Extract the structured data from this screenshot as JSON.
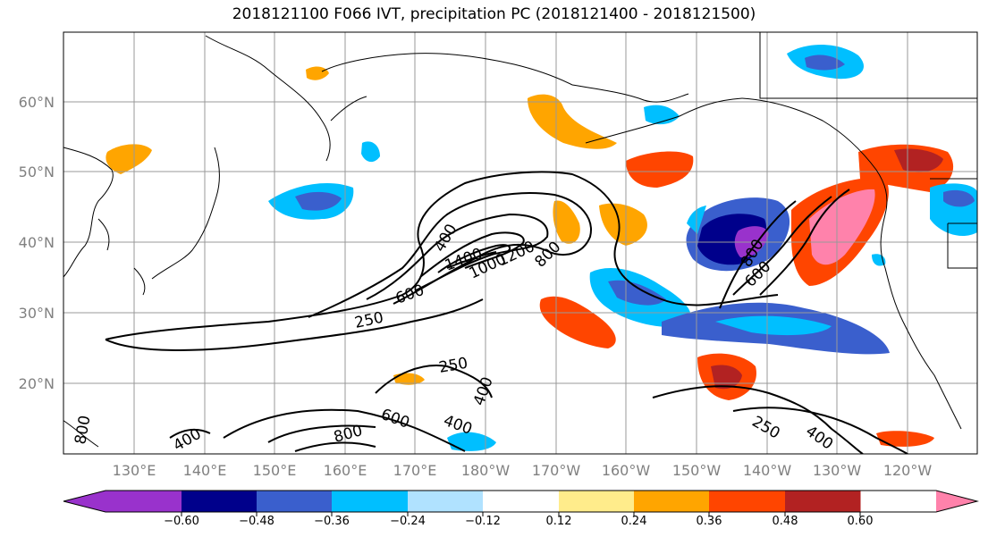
{
  "title": "2018121100 F066 IVT, precipitation PC (2018121400 - 2018121500)",
  "map": {
    "lat_labels": [
      "60°N",
      "50°N",
      "40°N",
      "30°N",
      "20°N"
    ],
    "lon_labels": [
      "130°E",
      "140°E",
      "150°E",
      "160°E",
      "170°E",
      "180°W",
      "170°W",
      "160°W",
      "150°W",
      "140°W",
      "130°W",
      "120°W"
    ],
    "axis_label_color": "#808080",
    "ivt_contour_labels": [
      "250",
      "250",
      "400",
      "400",
      "400",
      "400",
      "600",
      "600",
      "600",
      "800",
      "800",
      "800",
      "1000",
      "1200",
      "1400",
      "400",
      "800",
      "250",
      "400"
    ]
  },
  "colorbar": {
    "colors": [
      "#9932cc",
      "#00008b",
      "#3a5fcd",
      "#00bfff",
      "#b0e2ff",
      "#ffffff",
      "#ffec8b",
      "#ffa500",
      "#ff4500",
      "#b22222",
      "#ff82ab"
    ],
    "labels": [
      "−0.60",
      "−0.48",
      "−0.36",
      "−0.24",
      "−0.12",
      "0.12",
      "0.24",
      "0.36",
      "0.48",
      "0.60"
    ]
  }
}
